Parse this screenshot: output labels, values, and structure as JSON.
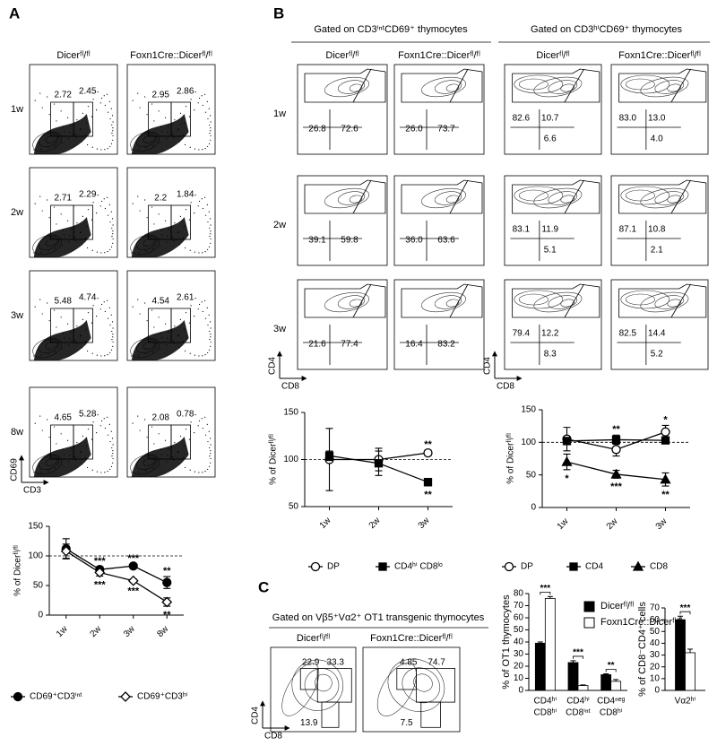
{
  "panel_labels": [
    "A",
    "B",
    "C"
  ],
  "genotypes": [
    "Dicerᶠˡ/ᶠˡ",
    "Foxn1Cre::Dicerᶠˡ/ᶠˡ"
  ],
  "panel_a": {
    "rows": [
      "1w",
      "2w",
      "3w",
      "8w"
    ],
    "values": [
      [
        [
          "2.72",
          "2.45"
        ],
        [
          "2.95",
          "2.86"
        ]
      ],
      [
        [
          "2.71",
          "2.29"
        ],
        [
          "2.2",
          "1.84"
        ]
      ],
      [
        [
          "5.48",
          "4.74"
        ],
        [
          "4.54",
          "2.61"
        ]
      ],
      [
        [
          "4.65",
          "5.28"
        ],
        [
          "2.08",
          "0.78"
        ]
      ]
    ],
    "x_axis": "CD3",
    "y_axis": "CD69"
  },
  "panel_b": {
    "rows": [
      "1w",
      "2w",
      "3w"
    ],
    "x_axis": "CD8",
    "y_axis": "CD4",
    "gates": [
      {
        "title": "Gated on CD3ⁱⁿᵗCD69⁺ thymocytes",
        "values": [
          [
            [
              "26.8",
              "72.6"
            ],
            [
              "26.0",
              "73.7"
            ]
          ],
          [
            [
              "39.1",
              "59.8"
            ],
            [
              "36.0",
              "63.6"
            ]
          ],
          [
            [
              "21.6",
              "77.4"
            ],
            [
              "16.4",
              "83.2"
            ]
          ]
        ]
      },
      {
        "title": "Gated on CD3ʰⁱCD69⁺ thymocytes",
        "values": [
          [
            [
              "82.6",
              "10.7",
              "6.6"
            ],
            [
              "83.0",
              "13.0",
              "4.0"
            ]
          ],
          [
            [
              "83.1",
              "11.9",
              "5.1"
            ],
            [
              "87.1",
              "10.8",
              "2.1"
            ]
          ],
          [
            [
              "79.4",
              "12.2",
              "8.3"
            ],
            [
              "82.5",
              "14.4",
              "5.2"
            ]
          ]
        ]
      }
    ]
  },
  "panel_c": {
    "title": "Gated on Vβ5⁺Vα2⁺ OT1 transgenic thymocytes",
    "values": [
      [
        "22.9",
        "33.3",
        "13.9"
      ],
      [
        "4.85",
        "74.7",
        "7.5"
      ]
    ],
    "x_axis": "CD8",
    "y_axis": "CD4"
  },
  "chart_data": [
    {
      "type": "line",
      "ylabel": "% of Dicerᶠˡ/ᶠˡ",
      "categories": [
        "1w",
        "2w",
        "3w",
        "8w"
      ],
      "ylim": [
        0,
        150
      ],
      "yticks": [
        0,
        50,
        100,
        150
      ],
      "reference_line": 100,
      "series": [
        {
          "name": "CD69⁺CD3ⁱⁿᵗ",
          "color": "#000000",
          "marker": "filled-circle",
          "values": [
            112,
            77,
            83,
            55
          ],
          "errors": [
            17,
            5,
            3,
            10
          ],
          "annotations": [
            null,
            "***",
            "***",
            "**"
          ]
        },
        {
          "name": "CD69⁺CD3ʰⁱ",
          "color": "#000000",
          "marker": "open-diamond",
          "values": [
            108,
            72,
            58,
            22
          ],
          "errors": [
            12,
            6,
            3,
            7
          ],
          "annotations": [
            null,
            "***",
            "***",
            "**"
          ]
        }
      ]
    },
    {
      "type": "line",
      "ylabel": "% of Dicerᶠˡ/ᶠˡ",
      "categories": [
        "1w",
        "2w",
        "3w"
      ],
      "ylim": [
        50,
        150
      ],
      "yticks": [
        50,
        100,
        150
      ],
      "reference_line": 100,
      "series": [
        {
          "name": "DP",
          "color": "#000000",
          "marker": "open-circle",
          "values": [
            100,
            100,
            107
          ],
          "errors": [
            33,
            12,
            3
          ],
          "annotations": [
            null,
            null,
            "**"
          ]
        },
        {
          "name": "CD4ʰⁱ CD8ˡᵒ",
          "color": "#000000",
          "marker": "filled-square",
          "values": [
            104,
            96,
            76
          ],
          "errors": [
            5,
            13,
            4
          ],
          "annotations": [
            null,
            null,
            "**"
          ]
        }
      ]
    },
    {
      "type": "line",
      "ylabel": "% of Dicerᶠˡ/ᶠˡ",
      "categories": [
        "1w",
        "2w",
        "3w"
      ],
      "ylim": [
        0,
        150
      ],
      "yticks": [
        0,
        50,
        100,
        150
      ],
      "reference_line": 100,
      "series": [
        {
          "name": "DP",
          "color": "#000000",
          "marker": "open-circle",
          "values": [
            105,
            89,
            116
          ],
          "errors": [
            18,
            10,
            10
          ],
          "annotations": [
            null,
            null,
            "*"
          ]
        },
        {
          "name": "CD4",
          "color": "#000000",
          "marker": "filled-square",
          "values": [
            102,
            104,
            103
          ],
          "errors": [
            5,
            7,
            3
          ],
          "annotations": [
            null,
            "**",
            null
          ]
        },
        {
          "name": "CD8",
          "color": "#000000",
          "marker": "filled-triangle",
          "values": [
            70,
            51,
            43
          ],
          "errors": [
            12,
            6,
            10
          ],
          "annotations": [
            "*",
            "***",
            "**"
          ]
        }
      ]
    },
    {
      "type": "bar",
      "ylabel": "% of OT1 thymocytes",
      "categories": [
        [
          "CD4ʰⁱ",
          "CD8ʰⁱ"
        ],
        [
          "CD4ʰⁱ",
          "CD8ⁱⁿᵗ"
        ],
        [
          "CD4ⁿᵉᵍ",
          "CD8ʰⁱ"
        ]
      ],
      "ylim": [
        0,
        80
      ],
      "yticks": [
        0,
        10,
        20,
        30,
        40,
        50,
        60,
        70,
        80
      ],
      "significance": [
        "***",
        "***",
        "**"
      ],
      "series": [
        {
          "name": "Dicerᶠˡ/ᶠˡ",
          "color": "#000000",
          "values": [
            39,
            23,
            13
          ],
          "errors": [
            1,
            1.5,
            0.7
          ]
        },
        {
          "name": "Foxn1Cre::Dicerᶠˡ/ᶠˡ",
          "color": "#ffffff",
          "values": [
            76,
            4,
            7.5
          ],
          "errors": [
            1.5,
            0.5,
            1.5
          ]
        }
      ]
    },
    {
      "type": "bar",
      "ylabel": "% of CD8⁻CD4⁺ cells",
      "categories": [
        "Vα2ʰⁱ"
      ],
      "ylim": [
        0,
        70
      ],
      "yticks": [
        0,
        10,
        20,
        30,
        40,
        50,
        60,
        70
      ],
      "significance": [
        "***"
      ],
      "series": [
        {
          "color": "#000000",
          "values": [
            60
          ],
          "errors": [
            3
          ]
        },
        {
          "color": "#ffffff",
          "values": [
            32
          ],
          "errors": [
            3
          ]
        }
      ]
    }
  ]
}
